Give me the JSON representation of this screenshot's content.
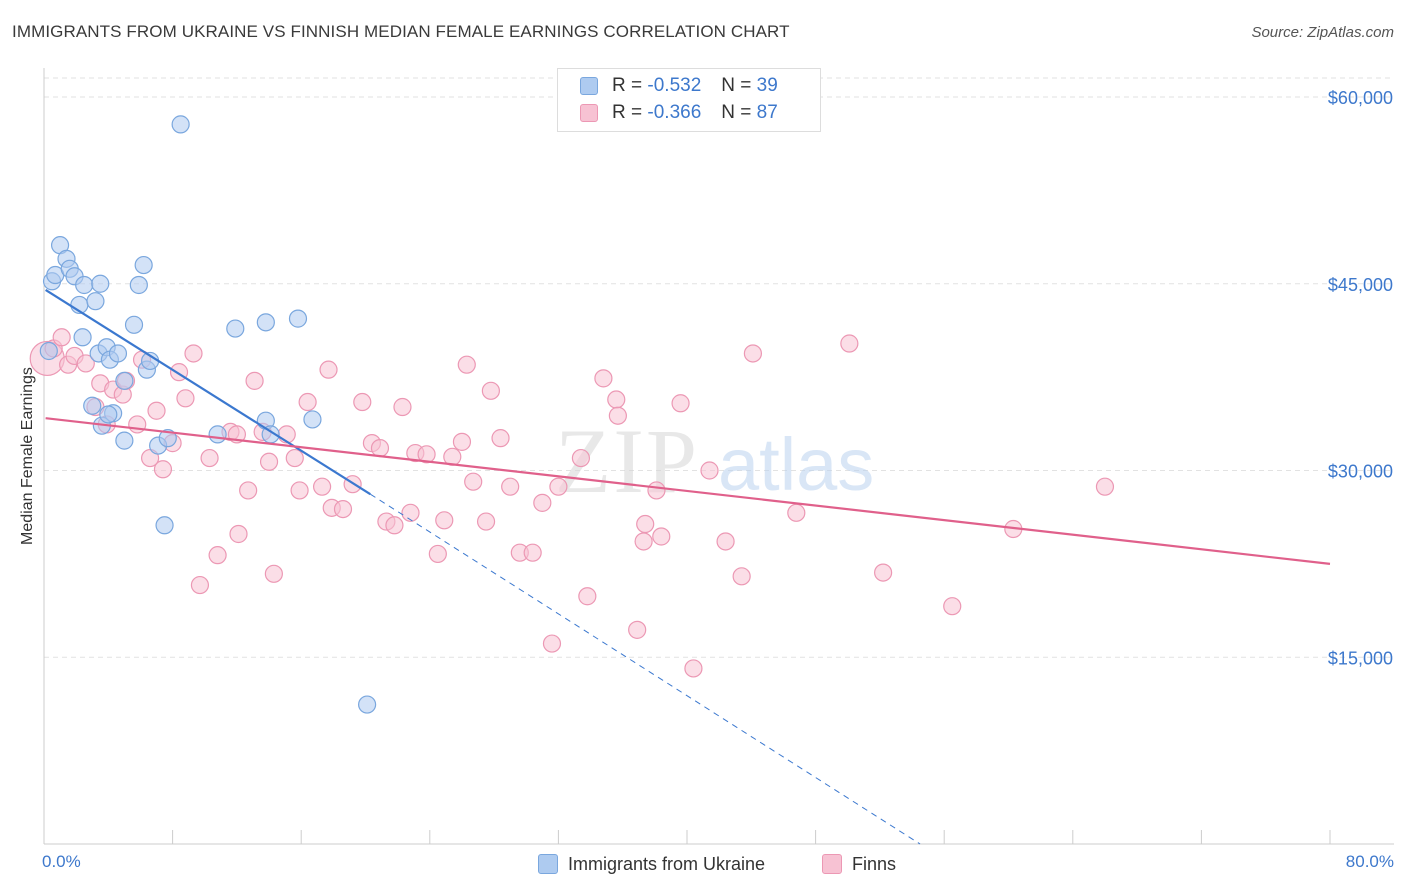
{
  "header": {
    "title": "IMMIGRANTS FROM UKRAINE VS FINNISH MEDIAN FEMALE EARNINGS CORRELATION CHART",
    "source": "Source: ZipAtlas.com"
  },
  "watermark": {
    "zip": "ZIP",
    "atlas": "atlas"
  },
  "legend_stats": [
    {
      "r_label": "R =",
      "r_value": "-0.532",
      "n_label": "N =",
      "n_value": "39"
    },
    {
      "r_label": "R =",
      "r_value": "-0.366",
      "n_label": "N =",
      "n_value": "87"
    }
  ],
  "bottom_legend": [
    {
      "label": "Immigrants from Ukraine"
    },
    {
      "label": "Finns"
    }
  ],
  "x_tick_labels": {
    "min": "0.0%",
    "max": "80.0%"
  },
  "colors": {
    "blue_fill": "#aecbf0",
    "blue_stroke": "#7aa7de",
    "blue_line": "#3b78cf",
    "pink_fill": "#f7c2d3",
    "pink_stroke": "#ec98b4",
    "pink_line": "#e0608b",
    "grid": "#e2e2e2",
    "tick_text": "#3d78cc"
  },
  "chart_data": {
    "type": "scatter",
    "title": "IMMIGRANTS FROM UKRAINE VS FINNISH MEDIAN FEMALE EARNINGS CORRELATION CHART",
    "xlabel": "",
    "ylabel": "Median Female Earnings",
    "xlim": [
      0,
      80
    ],
    "ylim": [
      0,
      60000
    ],
    "x_unit": "%",
    "y_ticks": [
      {
        "value": 60000,
        "label": "$60,000"
      },
      {
        "value": 45000,
        "label": "$45,000"
      },
      {
        "value": 30000,
        "label": "$30,000"
      },
      {
        "value": 15000,
        "label": "$15,000"
      }
    ],
    "grid": true,
    "legend_position": "top-center",
    "series": [
      {
        "name": "Immigrants from Ukraine",
        "color": "blue",
        "r": -0.532,
        "n": 39,
        "trend": {
          "x0": 0.1,
          "y0": 44500,
          "x1": 20.3,
          "y1": 28100,
          "dash_to_x": 54.5,
          "dash_to_y": 0
        },
        "points": [
          [
            0.3,
            39600
          ],
          [
            0.5,
            45200
          ],
          [
            0.7,
            45700
          ],
          [
            1.0,
            48100
          ],
          [
            1.4,
            47000
          ],
          [
            1.6,
            46200
          ],
          [
            1.9,
            45600
          ],
          [
            2.2,
            43300
          ],
          [
            2.4,
            40700
          ],
          [
            2.5,
            44900
          ],
          [
            3.0,
            35200
          ],
          [
            3.2,
            43600
          ],
          [
            3.4,
            39400
          ],
          [
            3.5,
            45000
          ],
          [
            3.6,
            33600
          ],
          [
            3.9,
            39900
          ],
          [
            4.1,
            38900
          ],
          [
            4.3,
            34600
          ],
          [
            4.6,
            39400
          ],
          [
            5.0,
            37200
          ],
          [
            5.0,
            32400
          ],
          [
            5.6,
            41700
          ],
          [
            5.9,
            44900
          ],
          [
            6.2,
            46500
          ],
          [
            6.4,
            38100
          ],
          [
            6.6,
            38800
          ],
          [
            7.1,
            32000
          ],
          [
            7.5,
            25600
          ],
          [
            8.5,
            57800
          ],
          [
            10.8,
            32900
          ],
          [
            11.9,
            41400
          ],
          [
            13.8,
            41900
          ],
          [
            13.8,
            34000
          ],
          [
            14.1,
            32900
          ],
          [
            15.8,
            42200
          ],
          [
            16.7,
            34100
          ],
          [
            20.1,
            11200
          ],
          [
            7.7,
            32600
          ],
          [
            4.0,
            34500
          ]
        ]
      },
      {
        "name": "Finns",
        "color": "pink",
        "r": -0.366,
        "n": 87,
        "trend": {
          "x0": 0.1,
          "y0": 34200,
          "x1": 80,
          "y1": 22500
        },
        "points": [
          [
            0.2,
            39000
          ],
          [
            0.6,
            39800
          ],
          [
            1.1,
            40700
          ],
          [
            1.5,
            38500
          ],
          [
            1.9,
            39200
          ],
          [
            2.6,
            38600
          ],
          [
            3.2,
            35100
          ],
          [
            3.5,
            37000
          ],
          [
            3.9,
            33700
          ],
          [
            4.3,
            36500
          ],
          [
            4.9,
            36100
          ],
          [
            5.1,
            37200
          ],
          [
            5.8,
            33700
          ],
          [
            6.1,
            38900
          ],
          [
            6.6,
            31000
          ],
          [
            7.0,
            34800
          ],
          [
            7.4,
            30100
          ],
          [
            8.0,
            32200
          ],
          [
            8.4,
            37900
          ],
          [
            8.8,
            35800
          ],
          [
            9.3,
            39400
          ],
          [
            9.7,
            20800
          ],
          [
            10.3,
            31000
          ],
          [
            10.8,
            23200
          ],
          [
            11.6,
            33100
          ],
          [
            12.0,
            32900
          ],
          [
            12.1,
            24900
          ],
          [
            12.7,
            28400
          ],
          [
            13.1,
            37200
          ],
          [
            13.6,
            33100
          ],
          [
            14.0,
            30700
          ],
          [
            14.3,
            21700
          ],
          [
            15.1,
            32900
          ],
          [
            15.6,
            31000
          ],
          [
            15.9,
            28400
          ],
          [
            16.4,
            35500
          ],
          [
            17.3,
            28700
          ],
          [
            17.7,
            38100
          ],
          [
            17.9,
            27000
          ],
          [
            18.6,
            26900
          ],
          [
            19.2,
            28900
          ],
          [
            19.8,
            35500
          ],
          [
            20.4,
            32200
          ],
          [
            20.9,
            31800
          ],
          [
            21.3,
            25900
          ],
          [
            21.8,
            25600
          ],
          [
            22.3,
            35100
          ],
          [
            22.8,
            26600
          ],
          [
            23.1,
            31400
          ],
          [
            23.8,
            31300
          ],
          [
            24.5,
            23300
          ],
          [
            24.9,
            26000
          ],
          [
            25.4,
            31100
          ],
          [
            26.0,
            32300
          ],
          [
            26.3,
            38500
          ],
          [
            26.7,
            29100
          ],
          [
            27.5,
            25900
          ],
          [
            27.8,
            36400
          ],
          [
            28.4,
            32600
          ],
          [
            29.0,
            28700
          ],
          [
            29.6,
            23400
          ],
          [
            30.4,
            23400
          ],
          [
            31.0,
            27400
          ],
          [
            31.6,
            16100
          ],
          [
            32.0,
            28700
          ],
          [
            33.4,
            31000
          ],
          [
            33.8,
            19900
          ],
          [
            34.8,
            37400
          ],
          [
            35.6,
            35700
          ],
          [
            35.7,
            34400
          ],
          [
            36.9,
            17200
          ],
          [
            37.3,
            24300
          ],
          [
            37.4,
            25700
          ],
          [
            38.1,
            28400
          ],
          [
            38.4,
            24700
          ],
          [
            39.6,
            35400
          ],
          [
            40.4,
            14100
          ],
          [
            41.4,
            30000
          ],
          [
            42.4,
            24300
          ],
          [
            43.4,
            21500
          ],
          [
            44.1,
            39400
          ],
          [
            46.8,
            26600
          ],
          [
            50.1,
            40200
          ],
          [
            52.2,
            21800
          ],
          [
            56.5,
            19100
          ],
          [
            60.3,
            25300
          ],
          [
            66.0,
            28700
          ]
        ]
      }
    ]
  }
}
